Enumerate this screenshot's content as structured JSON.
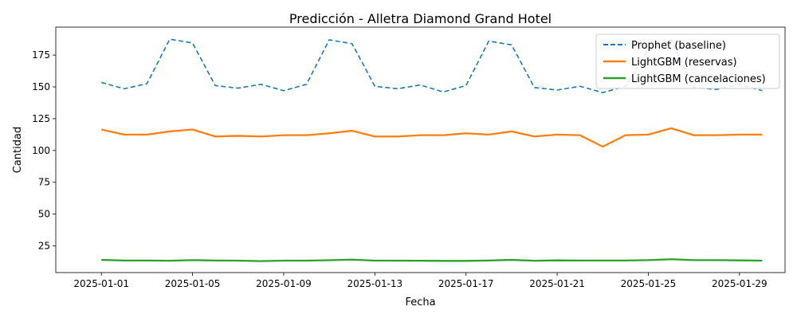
{
  "chart_data": {
    "type": "line",
    "title": "Predicción - Alletra Diamond Grand Hotel",
    "xlabel": "Fecha",
    "ylabel": "Cantidad",
    "x_start": "2025-01-01",
    "xlim": [
      "2024-12-30",
      "2025-01-31"
    ],
    "ylim": [
      4,
      197
    ],
    "x_ticks": [
      "2025-01-01",
      "2025-01-05",
      "2025-01-09",
      "2025-01-13",
      "2025-01-17",
      "2025-01-21",
      "2025-01-25",
      "2025-01-29"
    ],
    "y_ticks": [
      25,
      50,
      75,
      100,
      125,
      150,
      175
    ],
    "grid": false,
    "legend_position": "top-right",
    "series": [
      {
        "name": "Prophet (baseline)",
        "color": "#1f77b4",
        "style": "dashed",
        "values": [
          153.5,
          148.5,
          152.5,
          187.5,
          184.5,
          151.0,
          149.0,
          152.0,
          147.0,
          152.0,
          187.0,
          184.0,
          150.5,
          148.5,
          151.5,
          146.0,
          151.0,
          186.0,
          183.0,
          149.5,
          147.5,
          150.5,
          145.5,
          150.5,
          179.0,
          187.0,
          149.5,
          148.0,
          152.0,
          147.0
        ]
      },
      {
        "name": "LightGBM (reservas)",
        "color": "#ff7f0e",
        "style": "solid",
        "values": [
          116.5,
          112.5,
          112.5,
          115.0,
          116.5,
          111.0,
          111.5,
          111.0,
          112.0,
          112.0,
          113.5,
          115.5,
          111.0,
          111.0,
          112.0,
          112.0,
          113.5,
          112.5,
          115.0,
          111.0,
          112.5,
          112.0,
          103.0,
          112.0,
          112.5,
          117.5,
          112.0,
          112.0,
          112.5,
          112.5
        ]
      },
      {
        "name": "LightGBM (cancelaciones)",
        "color": "#2ca02c",
        "style": "solid",
        "values": [
          14.0,
          13.5,
          13.5,
          13.3,
          13.8,
          13.5,
          13.4,
          13.0,
          13.4,
          13.4,
          13.7,
          14.2,
          13.4,
          13.4,
          13.3,
          13.2,
          13.2,
          13.5,
          14.0,
          13.3,
          13.6,
          13.5,
          13.5,
          13.5,
          13.8,
          14.5,
          13.8,
          13.8,
          13.6,
          13.4
        ]
      }
    ]
  }
}
